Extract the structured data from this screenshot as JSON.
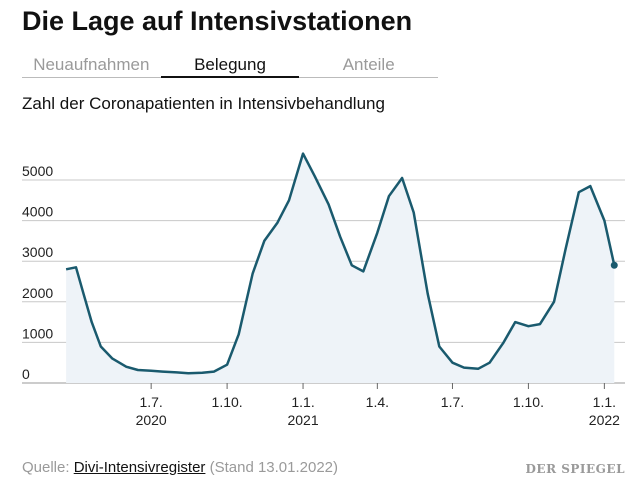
{
  "header": {
    "title": "Die Lage auf Intensivstationen"
  },
  "tabs": [
    {
      "label": "Neuaufnahmen",
      "active": false
    },
    {
      "label": "Belegung",
      "active": true
    },
    {
      "label": "Anteile",
      "active": false
    }
  ],
  "footer": {
    "prefix": "Quelle: ",
    "source_link": "Divi-Intensivregister",
    "suffix": " (Stand 13.01.2022)",
    "logo": "DER SPIEGEL"
  },
  "colors": {
    "line": "#1a5a6e",
    "area": "#eef3f8",
    "grid": "#c8c8c8"
  },
  "chart_data": {
    "type": "area",
    "title": "Zahl der Coronapatienten in Intensivbehandlung",
    "xlabel": "",
    "ylabel": "",
    "ylim": [
      0,
      5500
    ],
    "xlim": [
      "2020-03-15",
      "2022-01-26"
    ],
    "y_ticks": [
      0,
      1000,
      2000,
      3000,
      4000,
      5000
    ],
    "x_ticks": [
      {
        "date": "2020-07-01",
        "label": "1.7.",
        "year": "2020"
      },
      {
        "date": "2020-10-01",
        "label": "1.10.",
        "year": ""
      },
      {
        "date": "2021-01-01",
        "label": "1.1.",
        "year": "2021"
      },
      {
        "date": "2021-04-01",
        "label": "1.4.",
        "year": ""
      },
      {
        "date": "2021-07-01",
        "label": "1.7.",
        "year": ""
      },
      {
        "date": "2021-10-01",
        "label": "1.10.",
        "year": ""
      },
      {
        "date": "2022-01-01",
        "label": "1.1.",
        "year": "2022"
      }
    ],
    "grid": true,
    "series": [
      {
        "x": [
          "2020-03-20",
          "2020-04-01",
          "2020-04-10",
          "2020-04-20",
          "2020-05-01",
          "2020-05-15",
          "2020-06-01",
          "2020-06-15",
          "2020-07-01",
          "2020-07-15",
          "2020-08-01",
          "2020-08-15",
          "2020-09-01",
          "2020-09-15",
          "2020-10-01",
          "2020-10-15",
          "2020-11-01",
          "2020-11-15",
          "2020-12-01",
          "2020-12-15",
          "2021-01-01",
          "2021-01-15",
          "2021-02-01",
          "2021-02-15",
          "2021-03-01",
          "2021-03-15",
          "2021-04-01",
          "2021-04-15",
          "2021-05-01",
          "2021-05-15",
          "2021-06-01",
          "2021-06-15",
          "2021-07-01",
          "2021-07-15",
          "2021-08-01",
          "2021-08-15",
          "2021-09-01",
          "2021-09-15",
          "2021-10-01",
          "2021-10-15",
          "2021-11-01",
          "2021-11-15",
          "2021-12-01",
          "2021-12-15",
          "2022-01-01",
          "2022-01-13"
        ],
        "y": [
          2800,
          2850,
          2200,
          1500,
          900,
          600,
          400,
          320,
          300,
          280,
          260,
          240,
          250,
          280,
          450,
          1200,
          2700,
          3500,
          3950,
          4500,
          5650,
          5100,
          4400,
          3600,
          2900,
          2750,
          3700,
          4600,
          5050,
          4200,
          2200,
          900,
          500,
          380,
          350,
          500,
          1000,
          1500,
          1400,
          1450,
          2000,
          3300,
          4700,
          4850,
          4000,
          2900
        ]
      }
    ]
  }
}
